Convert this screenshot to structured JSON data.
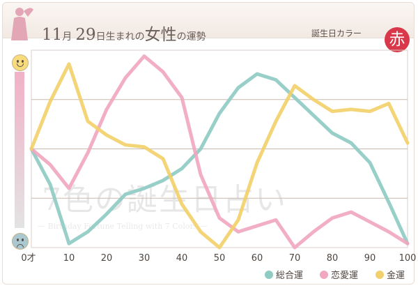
{
  "header": {
    "title_month": "11",
    "title_month_unit": "月",
    "title_day": "29",
    "title_day_unit": "日生まれの",
    "title_gender": "女性",
    "title_tail": "の運勢",
    "color_label": "誕生日カラー",
    "color_badge": "赤",
    "badge_color": "#d9384a"
  },
  "watermark": {
    "main": "7色の誕生日占い",
    "sub": "— Birthday Fortune Telling with 7 Colors —"
  },
  "legend": [
    {
      "label": "総合運",
      "color": "#8fcbc3"
    },
    {
      "label": "恋愛運",
      "color": "#f0a7bf"
    },
    {
      "label": "金運",
      "color": "#f2d06b"
    }
  ],
  "chart_data": {
    "type": "line",
    "x": [
      0,
      5,
      10,
      15,
      20,
      25,
      30,
      35,
      40,
      45,
      50,
      55,
      60,
      65,
      70,
      75,
      80,
      85,
      90,
      95,
      100
    ],
    "xticks": [
      "0才",
      "10",
      "20",
      "30",
      "40",
      "50",
      "60",
      "70",
      "80",
      "90",
      "100"
    ],
    "xlim": [
      0,
      100
    ],
    "ylim": [
      0,
      100
    ],
    "grid": true,
    "series": [
      {
        "name": "総合運",
        "color": "#8fcbc3",
        "values": [
          50,
          32,
          2,
          8,
          17,
          27,
          30,
          34,
          40,
          50,
          68,
          81,
          88,
          85,
          76,
          67,
          58,
          53,
          43,
          23,
          2
        ]
      },
      {
        "name": "恋愛運",
        "color": "#f0a7bf",
        "values": [
          50,
          42,
          30,
          48,
          70,
          86,
          97,
          89,
          76,
          37,
          15,
          8,
          11,
          14,
          0,
          8,
          15,
          18,
          13,
          8,
          2
        ]
      },
      {
        "name": "金運",
        "color": "#f2d06b",
        "values": [
          50,
          74,
          93,
          64,
          57,
          52,
          51,
          45,
          22,
          8,
          0,
          14,
          43,
          64,
          82,
          75,
          69,
          70,
          69,
          73,
          53
        ]
      }
    ]
  }
}
